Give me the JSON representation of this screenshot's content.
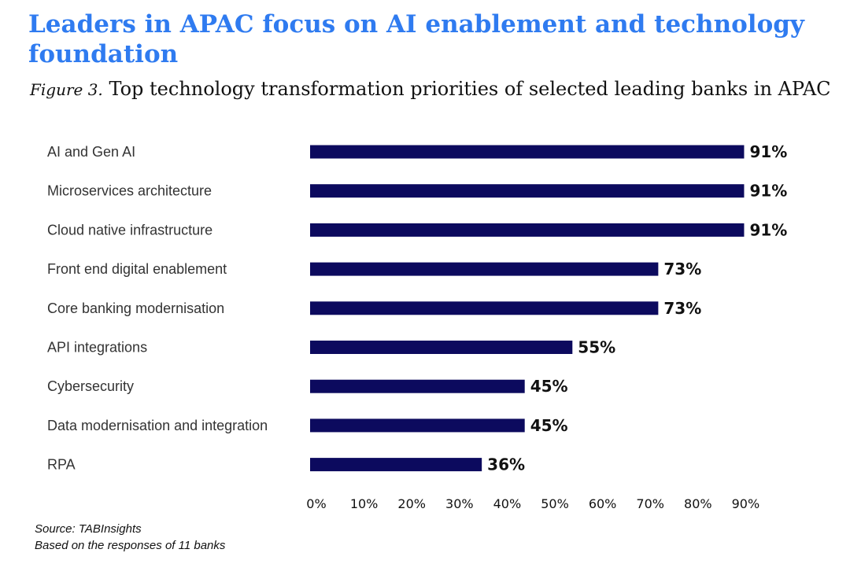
{
  "headline": "Leaders in APAC focus on AI enablement and technology foundation",
  "figure_label": "Figure 3.",
  "figure_title": "Top technology transformation priorities of selected leading banks in APAC",
  "source_line": "Source: TABInsights",
  "note_line": "Based on the responses of 11 banks",
  "colors": {
    "bar": "#0c0a5e",
    "headline": "#2f7bf0"
  },
  "chart_data": {
    "type": "bar",
    "orientation": "horizontal",
    "categories": [
      "AI and Gen AI",
      "Microservices architecture",
      "Cloud native infrastructure",
      "Front end digital enablement",
      "Core banking modernisation",
      "API integrations",
      "Cybersecurity",
      "Data modernisation and integration",
      "RPA"
    ],
    "values": [
      91,
      91,
      91,
      73,
      73,
      55,
      45,
      45,
      36
    ],
    "value_labels": [
      "91%",
      "91%",
      "91%",
      "73%",
      "73%",
      "55%",
      "45%",
      "45%",
      "36%"
    ],
    "xlim": [
      0,
      90
    ],
    "x_ticks": [
      0,
      10,
      20,
      30,
      40,
      50,
      60,
      70,
      80,
      90
    ],
    "x_tick_labels": [
      "0%",
      "10%",
      "20%",
      "30%",
      "40%",
      "50%",
      "60%",
      "70%",
      "80%",
      "90%"
    ],
    "grid": false,
    "legend": "none"
  }
}
